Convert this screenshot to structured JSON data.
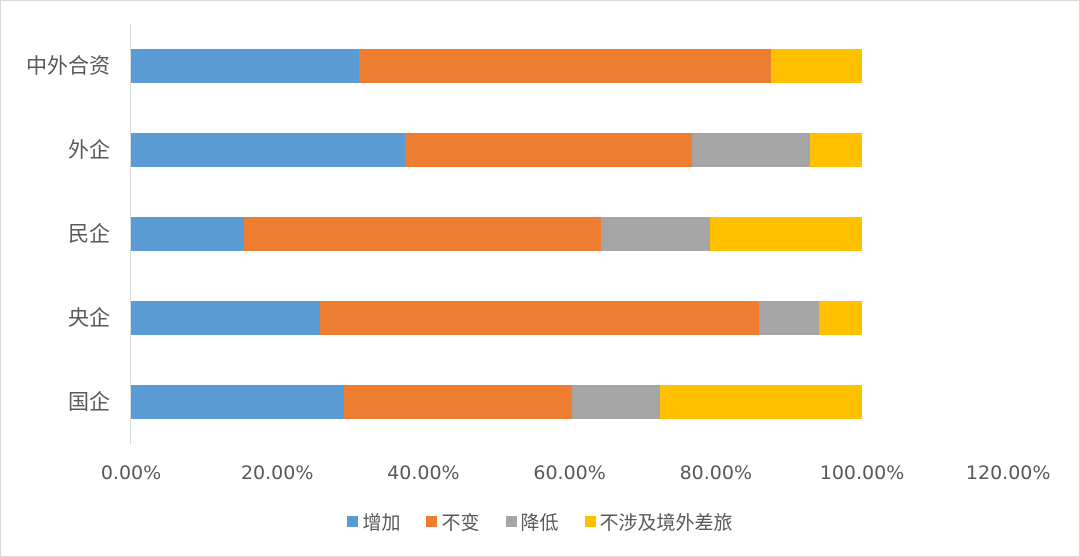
{
  "chart_data": {
    "type": "bar",
    "orientation": "horizontal",
    "stacked": true,
    "title": "",
    "xlabel": "",
    "ylabel": "",
    "xlim": [
      0,
      1.2
    ],
    "x_ticks": [
      "0.00%",
      "20.00%",
      "40.00%",
      "60.00%",
      "80.00%",
      "100.00%",
      "120.00%"
    ],
    "grid": false,
    "legend_position": "bottom",
    "categories": [
      "中外合资",
      "外企",
      "民企",
      "央企",
      "国企"
    ],
    "series": [
      {
        "name": "增加",
        "color": "#5B9BD5",
        "values": [
          0.312,
          0.375,
          0.155,
          0.259,
          0.292
        ]
      },
      {
        "name": "不变",
        "color": "#ED7D31",
        "values": [
          0.563,
          0.393,
          0.488,
          0.6,
          0.311
        ]
      },
      {
        "name": "降低",
        "color": "#A5A5A5",
        "values": [
          0.0,
          0.161,
          0.149,
          0.082,
          0.121
        ]
      },
      {
        "name": "不涉及境外差旅",
        "color": "#FFC000",
        "values": [
          0.125,
          0.071,
          0.208,
          0.059,
          0.276
        ]
      }
    ]
  },
  "legend": [
    {
      "label": "增加",
      "color": "#5B9BD5"
    },
    {
      "label": "不变",
      "color": "#ED7D31"
    },
    {
      "label": "降低",
      "color": "#A5A5A5"
    },
    {
      "label": "不涉及境外差旅",
      "color": "#FFC000"
    }
  ]
}
